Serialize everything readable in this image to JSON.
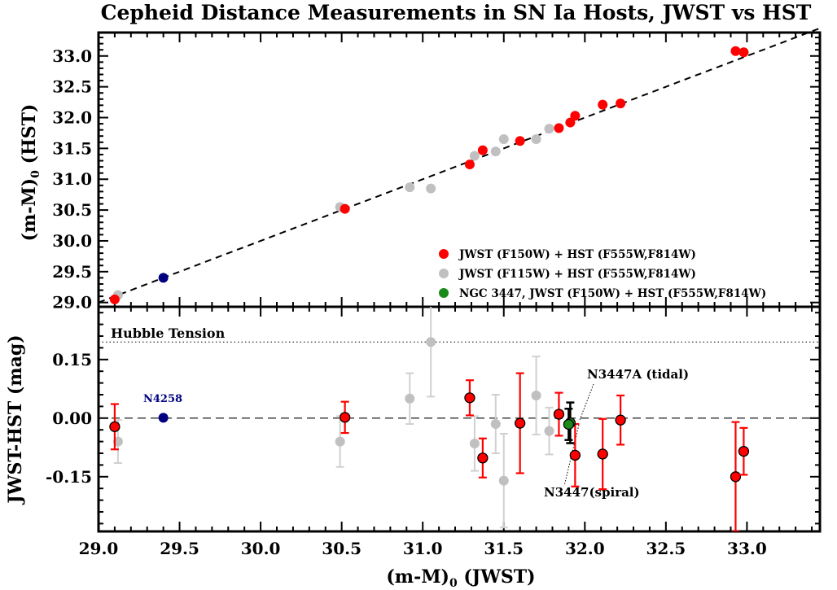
{
  "chart_data": {
    "type": "scatter",
    "title": "Cepheid Distance Measurements in SN Ia Hosts, JWST vs HST",
    "shared_x": {
      "label": "(m-M)",
      "label_sub": "0",
      "label_suffix": " (JWST)",
      "range": [
        29.0,
        33.45
      ],
      "ticks": [
        29.0,
        29.5,
        30.0,
        30.5,
        31.0,
        31.5,
        32.0,
        32.5,
        33.0
      ],
      "tick_labels": [
        "29.0",
        "29.5",
        "30.0",
        "30.5",
        "31.0",
        "31.5",
        "32.0",
        "32.5",
        "33.0"
      ]
    },
    "colors": {
      "red": "#ff0000",
      "gray": "#c0c0c0",
      "green": "#1a8a1a",
      "navy": "#000080",
      "dark_gray_err": "#d0d0d0",
      "frame": "#000000"
    },
    "top_panel": {
      "ylabel": "(m-M)",
      "ylabel_sub": "0",
      "ylabel_suffix": " (HST)",
      "yrange": [
        28.93,
        33.38
      ],
      "yticks": [
        29.0,
        29.5,
        30.0,
        30.5,
        31.0,
        31.5,
        32.0,
        32.5,
        33.0
      ],
      "ytick_labels": [
        "29.0",
        "29.5",
        "30.0",
        "30.5",
        "31.0",
        "31.5",
        "32.0",
        "32.5",
        "33.0"
      ],
      "reference_line": "one-to-one",
      "legend": [
        {
          "label": "JWST (F150W) + HST (F555W,F814W)",
          "color": "#ff0000"
        },
        {
          "label": "JWST (F115W) + HST (F555W,F814W)",
          "color": "#c0c0c0"
        },
        {
          "label": "NGC 3447, JWST (F150W) + HST (F555W,F814W)",
          "color": "#1a8a1a"
        }
      ],
      "gray_points": [
        {
          "x": 29.12,
          "y": 29.12
        },
        {
          "x": 30.49,
          "y": 30.55
        },
        {
          "x": 30.92,
          "y": 30.87
        },
        {
          "x": 31.05,
          "y": 30.85
        },
        {
          "x": 31.32,
          "y": 31.38
        },
        {
          "x": 31.45,
          "y": 31.45
        },
        {
          "x": 31.5,
          "y": 31.65
        },
        {
          "x": 31.7,
          "y": 31.65
        },
        {
          "x": 31.78,
          "y": 31.82
        }
      ],
      "red_points": [
        {
          "x": 29.1,
          "y": 29.05
        },
        {
          "x": 30.52,
          "y": 30.52
        },
        {
          "x": 31.29,
          "y": 31.24
        },
        {
          "x": 31.37,
          "y": 31.47
        },
        {
          "x": 31.6,
          "y": 31.62
        },
        {
          "x": 31.84,
          "y": 31.83
        },
        {
          "x": 31.91,
          "y": 31.92
        },
        {
          "x": 31.94,
          "y": 32.03
        },
        {
          "x": 32.11,
          "y": 32.21
        },
        {
          "x": 32.22,
          "y": 32.23
        },
        {
          "x": 32.93,
          "y": 33.08
        },
        {
          "x": 32.98,
          "y": 33.06
        }
      ],
      "navy_points": [
        {
          "x": 29.4,
          "y": 29.4
        }
      ]
    },
    "bottom_panel": {
      "ylabel": "JWST-HST (mag)",
      "yrange": [
        -0.29,
        0.285
      ],
      "yticks": [
        -0.15,
        0.0,
        0.15
      ],
      "ytick_labels": [
        "-0.15",
        "0.00",
        "0.15"
      ],
      "zero_line": 0.0,
      "hubble_tension_y": 0.195,
      "hubble_tension_label": "Hubble Tension",
      "labels": {
        "n4258": "N4258",
        "n3447a": "N3447A (tidal)",
        "n3447": "N3447(spiral)"
      },
      "gray_points": [
        {
          "x": 29.12,
          "y": -0.06,
          "err": 0.055
        },
        {
          "x": 30.49,
          "y": -0.06,
          "err": 0.065
        },
        {
          "x": 30.92,
          "y": 0.05,
          "err": 0.065
        },
        {
          "x": 31.05,
          "y": 0.195,
          "err": 0.14
        },
        {
          "x": 31.32,
          "y": -0.065,
          "err": 0.07
        },
        {
          "x": 31.45,
          "y": -0.015,
          "err": 0.075
        },
        {
          "x": 31.5,
          "y": -0.16,
          "err": 0.12
        },
        {
          "x": 31.7,
          "y": 0.058,
          "err": 0.1
        },
        {
          "x": 31.78,
          "y": -0.033,
          "err": 0.06
        }
      ],
      "red_points": [
        {
          "x": 29.1,
          "y": -0.022,
          "err": 0.058
        },
        {
          "x": 30.52,
          "y": 0.002,
          "err": 0.04
        },
        {
          "x": 31.29,
          "y": 0.052,
          "err": 0.045
        },
        {
          "x": 31.37,
          "y": -0.102,
          "err": 0.05
        },
        {
          "x": 31.6,
          "y": -0.013,
          "err": 0.128
        },
        {
          "x": 31.84,
          "y": 0.01,
          "err": 0.055
        },
        {
          "x": 31.94,
          "y": -0.095,
          "err": 0.08
        },
        {
          "x": 32.11,
          "y": -0.092,
          "err": 0.09
        },
        {
          "x": 32.22,
          "y": -0.005,
          "err": 0.063
        },
        {
          "x": 32.93,
          "y": -0.15,
          "err": 0.14
        },
        {
          "x": 32.98,
          "y": -0.085,
          "err": 0.06
        }
      ],
      "navy_points": [
        {
          "x": 29.4,
          "y": 0.001
        }
      ],
      "green_points": [
        {
          "x": 31.91,
          "y": -0.012,
          "err": 0.052
        },
        {
          "x": 31.9,
          "y": -0.016,
          "err": 0.04
        }
      ]
    }
  }
}
